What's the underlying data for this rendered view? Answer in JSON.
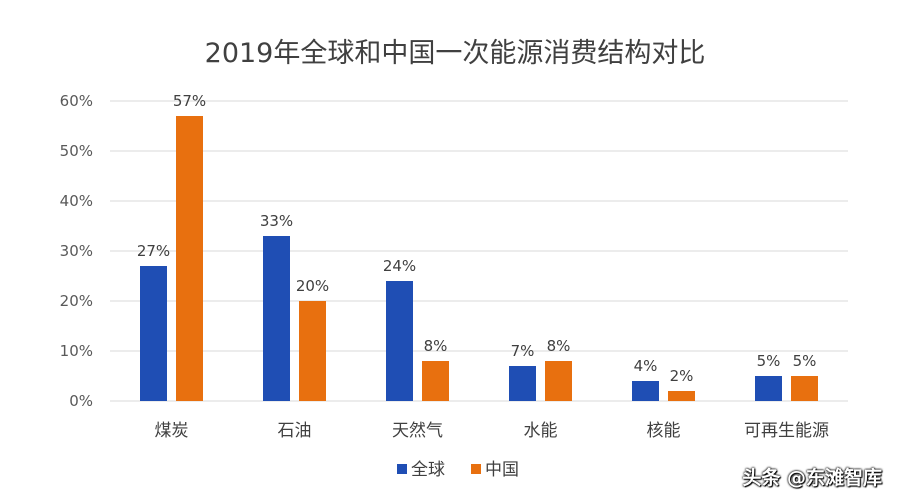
{
  "chart_data": {
    "type": "bar",
    "title": "2019年全球和中国一次能源消费结构对比",
    "categories": [
      "煤炭",
      "石油",
      "天然气",
      "水能",
      "核能",
      "可再生能源"
    ],
    "series": [
      {
        "name": "全球",
        "color": "#1f4eb4",
        "values": [
          27,
          33,
          24,
          7,
          4,
          5
        ],
        "labels": [
          "27%",
          "33%",
          "24%",
          "7%",
          "4%",
          "5%"
        ]
      },
      {
        "name": "中国",
        "color": "#e8700f",
        "values": [
          57,
          20,
          8,
          8,
          2,
          5
        ],
        "labels": [
          "57%",
          "20%",
          "8%",
          "8%",
          "2%",
          "5%"
        ]
      }
    ],
    "ylim": [
      0,
      60
    ],
    "yticks": [
      "0%",
      "10%",
      "20%",
      "30%",
      "40%",
      "50%",
      "60%"
    ],
    "grid": true,
    "legend": "bottom"
  },
  "watermark": "头条 @东滩智库"
}
